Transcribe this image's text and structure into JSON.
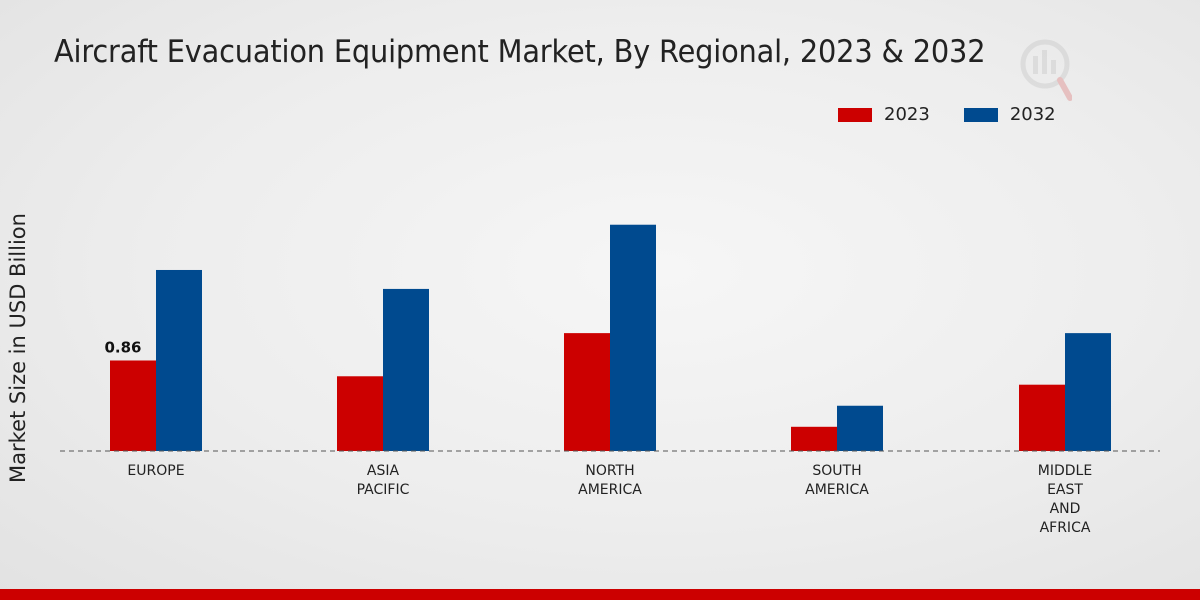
{
  "title": "Aircraft Evacuation Equipment Market, By Regional, 2023 & 2032",
  "chart_data": {
    "type": "bar",
    "title": "Aircraft Evacuation Equipment Market, By Regional, 2023 & 2032",
    "xlabel": "",
    "ylabel": "Market Size in USD Billion",
    "categories": [
      [
        "EUROPE"
      ],
      [
        "ASIA",
        "PACIFIC"
      ],
      [
        "NORTH",
        "AMERICA"
      ],
      [
        "SOUTH",
        "AMERICA"
      ],
      [
        "MIDDLE",
        "EAST",
        "AND",
        "AFRICA"
      ]
    ],
    "series": [
      {
        "name": "2023",
        "color": "#cc0000",
        "values": [
          0.86,
          0.71,
          1.12,
          0.23,
          0.63
        ]
      },
      {
        "name": "2032",
        "color": "#004a8f",
        "values": [
          1.72,
          1.54,
          2.15,
          0.43,
          1.12
        ]
      }
    ],
    "data_labels": [
      {
        "series": 0,
        "index": 0,
        "text": "0.86"
      }
    ],
    "ylim": [
      0,
      3.05
    ],
    "grid": false,
    "legend_position": "top-right"
  }
}
